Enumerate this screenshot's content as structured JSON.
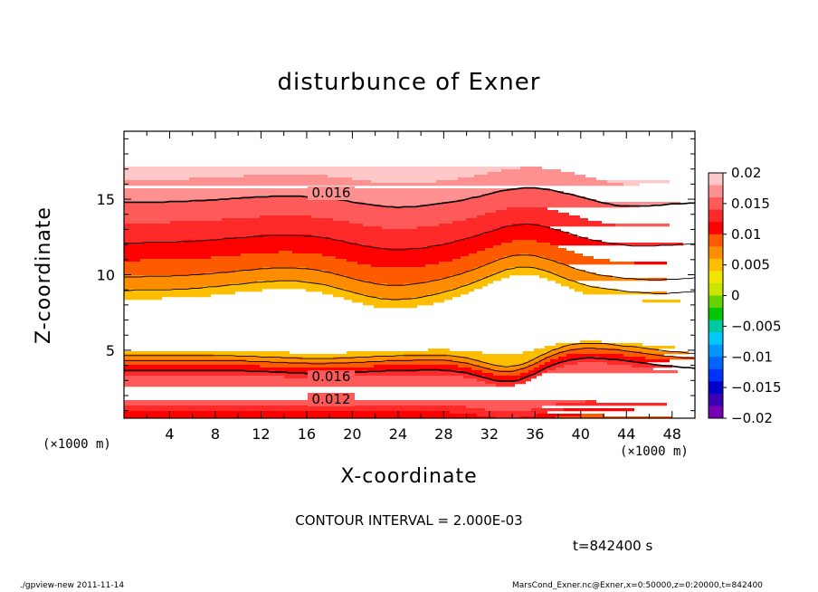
{
  "chart_data": {
    "type": "heatmap",
    "title": "disturbunce of Exner",
    "xlabel": "X-coordinate",
    "ylabel": "Z-coordinate",
    "x_unit_label": "(×1000 m)",
    "xlim": [
      0,
      50
    ],
    "ylim": [
      0.5,
      19.5
    ],
    "x_ticks": [
      4,
      8,
      12,
      16,
      20,
      24,
      28,
      32,
      36,
      40,
      44,
      48
    ],
    "y_ticks": [
      5,
      10,
      15
    ],
    "colorbar": {
      "ticks": [
        "0.02",
        "0.015",
        "0.01",
        "0.005",
        "0",
        "−0.005",
        "−0.01",
        "−0.015",
        "−0.02"
      ],
      "levels": [
        0.02,
        0.018,
        0.016,
        0.014,
        0.012,
        0.01,
        0.008,
        0.006,
        0.004,
        0.002,
        0,
        -0.002,
        -0.004,
        -0.006,
        -0.008,
        -0.01,
        -0.012,
        -0.014,
        -0.016,
        -0.018,
        -0.02
      ],
      "colors": [
        "#fec8c8",
        "#fe9090",
        "#fe5a5a",
        "#fe2a2a",
        "#fe0000",
        "#fe5a00",
        "#fe8c00",
        "#febe00",
        "#f0e600",
        "#c8e600",
        "#64d200",
        "#00c800",
        "#00c8a0",
        "#00c8fe",
        "#0096fe",
        "#0064fe",
        "#0032fe",
        "#0000c8",
        "#3c00b4",
        "#7800b4"
      ]
    },
    "contour_labels": [
      "0.016",
      "0.016",
      "0.012"
    ],
    "contour_interval": "CONTOUR INTERVAL = 2.000E-03",
    "time": "t=842400 s"
  },
  "footer": {
    "left": "./gpview-new  2011-11-14",
    "right": "MarsCond_Exner.nc@Exner,x=0:50000,z=0:20000,t=842400"
  }
}
